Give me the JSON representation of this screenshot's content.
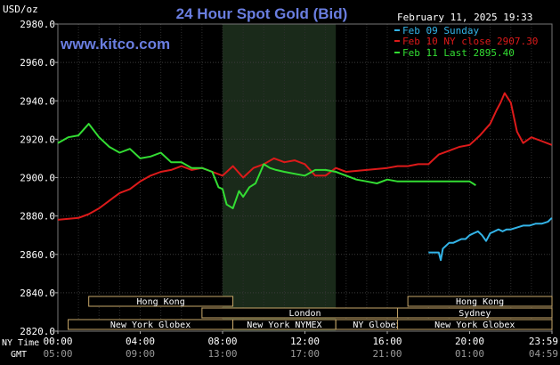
{
  "header": {
    "unit_label": "USD/oz",
    "title": "24 Hour Spot Gold (Bid)",
    "datetime": "February 11, 2025 19:33",
    "site": "www.kitco.com"
  },
  "legend": [
    {
      "label": "Feb 09 Sunday",
      "color": "#33b4e8"
    },
    {
      "label": "Feb 10 NY close 2907.30",
      "color": "#dd1a1a"
    },
    {
      "label": "Feb 11 Last 2895.40",
      "color": "#33dd33"
    }
  ],
  "time_axis": {
    "row1_label": "NY Time",
    "row2_label": "GMT",
    "ny": [
      "00:00",
      "04:00",
      "08:00",
      "12:00",
      "16:00",
      "20:00",
      "23:59"
    ],
    "gmt": [
      "05:00",
      "09:00",
      "13:00",
      "17:00",
      "21:00",
      "01:00",
      "04:59"
    ]
  },
  "sessions": [
    {
      "label": "Hong Kong",
      "row": 1
    },
    {
      "label": "London",
      "row": 2
    },
    {
      "label": "New York Globex",
      "row": 3
    },
    {
      "label": "New York NYMEX",
      "row": 3
    },
    {
      "label": "NY Globex",
      "row": 3
    },
    {
      "label": "Hong Kong",
      "row": 1
    },
    {
      "label": "Sydney",
      "row": 2
    },
    {
      "label": "New York Globex",
      "row": 3
    }
  ],
  "chart_data": {
    "type": "line",
    "title": "24 Hour Spot Gold (Bid)",
    "ylabel": "USD/oz",
    "ylim": [
      2820,
      2980
    ],
    "yticks": [
      "2980.0",
      "2960.0",
      "2940.0",
      "2920.0",
      "2900.0",
      "2880.0",
      "2860.0",
      "2840.0",
      "2820.0"
    ],
    "ytick_values": [
      2980,
      2960,
      2940,
      2920,
      2900,
      2880,
      2860,
      2840,
      2820
    ],
    "xlim": [
      0,
      24
    ],
    "x_unit": "hours (NY time)",
    "grid": true,
    "shaded_range": [
      8.0,
      13.5
    ],
    "series": [
      {
        "name": "Feb 09 Sunday",
        "color": "#33b4e8",
        "x": [
          18.0,
          18.5,
          18.6,
          18.7,
          18.8,
          19.0,
          19.2,
          19.4,
          19.6,
          19.8,
          20.0,
          20.2,
          20.4,
          20.6,
          20.8,
          21.0,
          21.2,
          21.4,
          21.6,
          21.8,
          22.0,
          22.3,
          22.6,
          22.9,
          23.2,
          23.5,
          23.8,
          23.99
        ],
        "y": [
          2861,
          2861,
          2857,
          2863,
          2864,
          2866,
          2866,
          2867,
          2868,
          2868,
          2870,
          2871,
          2872,
          2870,
          2867,
          2871,
          2872,
          2873,
          2872,
          2873,
          2873,
          2874,
          2875,
          2875,
          2876,
          2876,
          2877,
          2879
        ]
      },
      {
        "name": "Feb 10 NY close 2907.30",
        "color": "#dd1a1a",
        "x": [
          0.0,
          1.0,
          1.5,
          2.0,
          2.5,
          3.0,
          3.5,
          4.0,
          4.5,
          5.0,
          5.5,
          6.0,
          6.5,
          7.0,
          7.5,
          8.0,
          8.5,
          9.0,
          9.5,
          10.0,
          10.5,
          11.0,
          11.5,
          12.0,
          12.5,
          13.0,
          13.5,
          14.0,
          15.0,
          16.0,
          16.5,
          17.0,
          17.5,
          18.0,
          18.5,
          19.0,
          19.5,
          20.0,
          20.5,
          21.0,
          21.3,
          21.5,
          21.7,
          22.0,
          22.3,
          22.6,
          23.0,
          23.5,
          23.99
        ],
        "y": [
          2878,
          2879,
          2881,
          2884,
          2888,
          2892,
          2894,
          2898,
          2901,
          2903,
          2904,
          2906,
          2904,
          2905,
          2903,
          2901,
          2906,
          2900,
          2905,
          2907,
          2910,
          2908,
          2909,
          2907,
          2901,
          2901,
          2905,
          2903,
          2904,
          2905,
          2906,
          2906,
          2907,
          2907,
          2912,
          2914,
          2916,
          2917,
          2922,
          2928,
          2935,
          2939,
          2944,
          2939,
          2924,
          2918,
          2921,
          2919,
          2917
        ]
      },
      {
        "name": "Feb 11 Last 2895.40",
        "color": "#33dd33",
        "x": [
          0.0,
          0.5,
          1.0,
          1.5,
          2.0,
          2.5,
          3.0,
          3.5,
          4.0,
          4.5,
          5.0,
          5.5,
          6.0,
          6.5,
          7.0,
          7.5,
          7.8,
          8.0,
          8.2,
          8.5,
          8.8,
          9.0,
          9.3,
          9.6,
          10.0,
          10.3,
          10.6,
          11.0,
          11.5,
          12.0,
          12.5,
          13.0,
          13.5,
          14.0,
          14.5,
          15.0,
          15.5,
          16.0,
          16.5,
          17.0,
          17.5,
          18.0,
          18.5,
          19.0,
          19.5,
          20.0,
          20.3
        ],
        "y": [
          2918,
          2921,
          2922,
          2928,
          2921,
          2916,
          2913,
          2915,
          2910,
          2911,
          2913,
          2908,
          2908,
          2905,
          2905,
          2903,
          2895,
          2894,
          2886,
          2884,
          2893,
          2890,
          2895,
          2897,
          2907,
          2905,
          2904,
          2903,
          2902,
          2901,
          2904,
          2904,
          2903,
          2901,
          2899,
          2898,
          2897,
          2899,
          2898,
          2898,
          2898,
          2898,
          2898,
          2898,
          2898,
          2898,
          2896
        ]
      }
    ]
  }
}
